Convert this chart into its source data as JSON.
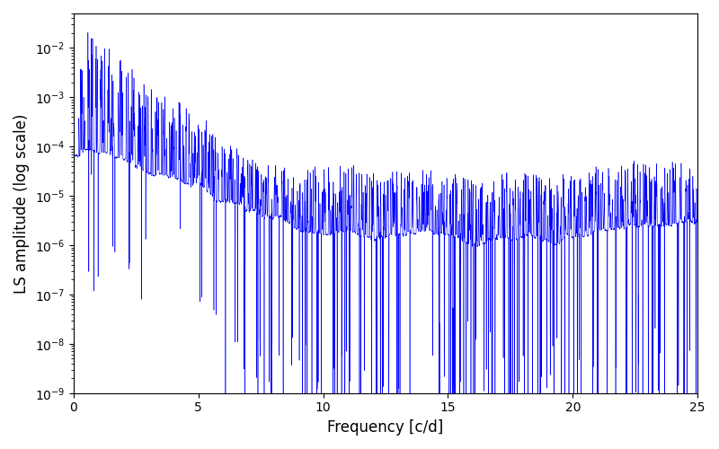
{
  "line_color": "#0000FF",
  "xlabel": "Frequency [c/d]",
  "ylabel": "LS amplitude (log scale)",
  "xlim": [
    0,
    25
  ],
  "ymin": 1e-09,
  "ymax": 0.05,
  "freq_max": 25.0,
  "n_points": 8000,
  "seed": 7,
  "background_color": "#ffffff",
  "linewidth": 0.4
}
